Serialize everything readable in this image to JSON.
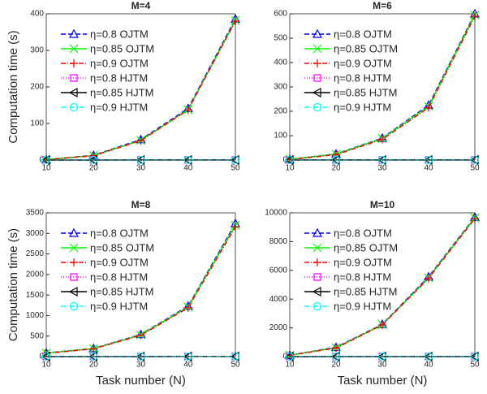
{
  "chart_data": [
    {
      "type": "line",
      "title": "M=4",
      "ylabel": "Computation time (s)",
      "x": [
        10,
        20,
        30,
        40,
        50
      ],
      "xlim": [
        10,
        50
      ],
      "xticks": [
        10,
        20,
        30,
        40,
        50
      ],
      "ylim": [
        0,
        400
      ],
      "yticks": [
        0,
        100,
        200,
        300,
        400
      ],
      "legend": "upper left",
      "series": [
        {
          "name": "η=0.8 OJTM",
          "color": "#0000ff",
          "dash": "6,3",
          "marker": "triangle-up",
          "values": [
            1,
            13,
            56,
            141,
            386
          ]
        },
        {
          "name": "η=0.85 OJTM",
          "color": "#00ff00",
          "dash": "none",
          "marker": "x",
          "values": [
            1,
            12,
            54,
            138,
            382
          ]
        },
        {
          "name": "η=0.9 OJTM",
          "color": "#ff0000",
          "dash": "6,2,1,2",
          "marker": "plus",
          "values": [
            1,
            12,
            53,
            137,
            380
          ]
        },
        {
          "name": "η=0.8 HJTM",
          "color": "#ff00ff",
          "dash": "1,2",
          "marker": "square",
          "values": [
            0.1,
            0.1,
            0.2,
            0.3,
            0.4
          ]
        },
        {
          "name": "η=0.85 HJTM",
          "color": "#000000",
          "dash": "none",
          "marker": "triangle-left",
          "values": [
            0.1,
            0.1,
            0.2,
            0.3,
            0.4
          ]
        },
        {
          "name": "η=0.9 HJTM",
          "color": "#00ffff",
          "dash": "6,2,1,2",
          "marker": "circle",
          "values": [
            0.1,
            0.1,
            0.2,
            0.3,
            0.4
          ]
        }
      ]
    },
    {
      "type": "line",
      "title": "M=6",
      "x": [
        10,
        20,
        30,
        40,
        50
      ],
      "xlim": [
        10,
        50
      ],
      "xticks": [
        10,
        20,
        30,
        40,
        50
      ],
      "ylim": [
        0,
        600
      ],
      "yticks": [
        0,
        100,
        200,
        300,
        400,
        500,
        600
      ],
      "legend": "upper left",
      "series": [
        {
          "name": "η=0.8 OJTM",
          "color": "#0000ff",
          "dash": "6,3",
          "marker": "triangle-up",
          "values": [
            3,
            25,
            90,
            225,
            600
          ]
        },
        {
          "name": "η=0.85 OJTM",
          "color": "#00ff00",
          "dash": "none",
          "marker": "x",
          "values": [
            3,
            24,
            88,
            220,
            595
          ]
        },
        {
          "name": "η=0.9 OJTM",
          "color": "#ff0000",
          "dash": "6,2,1,2",
          "marker": "plus",
          "values": [
            2,
            22,
            85,
            215,
            590
          ]
        },
        {
          "name": "η=0.8 HJTM",
          "color": "#ff00ff",
          "dash": "1,2",
          "marker": "square",
          "values": [
            0.2,
            0.3,
            0.4,
            0.5,
            0.6
          ]
        },
        {
          "name": "η=0.85 HJTM",
          "color": "#000000",
          "dash": "none",
          "marker": "triangle-left",
          "values": [
            0.2,
            0.3,
            0.4,
            0.5,
            0.6
          ]
        },
        {
          "name": "η=0.9 HJTM",
          "color": "#00ffff",
          "dash": "6,2,1,2",
          "marker": "circle",
          "values": [
            0.2,
            0.3,
            0.4,
            0.5,
            0.6
          ]
        }
      ]
    },
    {
      "type": "line",
      "title": "M=8",
      "ylabel": "Computation time (s)",
      "xlabel": "Task number (N)",
      "x": [
        10,
        20,
        30,
        40,
        50
      ],
      "xlim": [
        10,
        50
      ],
      "xticks": [
        10,
        20,
        30,
        40,
        50
      ],
      "ylim": [
        0,
        3500
      ],
      "yticks": [
        0,
        500,
        1000,
        1500,
        2000,
        2500,
        3000,
        3500
      ],
      "legend": "upper left",
      "series": [
        {
          "name": "η=0.8 OJTM",
          "color": "#0000ff",
          "dash": "6,3",
          "marker": "triangle-up",
          "values": [
            90,
            200,
            540,
            1230,
            3240
          ]
        },
        {
          "name": "η=0.85 OJTM",
          "color": "#00ff00",
          "dash": "none",
          "marker": "x",
          "values": [
            85,
            195,
            530,
            1210,
            3200
          ]
        },
        {
          "name": "η=0.9 OJTM",
          "color": "#ff0000",
          "dash": "6,2,1,2",
          "marker": "plus",
          "values": [
            80,
            190,
            520,
            1190,
            3160
          ]
        },
        {
          "name": "η=0.8 HJTM",
          "color": "#ff00ff",
          "dash": "1,2",
          "marker": "square",
          "values": [
            1,
            2,
            3,
            4,
            5
          ]
        },
        {
          "name": "η=0.85 HJTM",
          "color": "#000000",
          "dash": "none",
          "marker": "triangle-left",
          "values": [
            1,
            2,
            3,
            4,
            5
          ]
        },
        {
          "name": "η=0.9 HJTM",
          "color": "#00ffff",
          "dash": "6,2,1,2",
          "marker": "circle",
          "values": [
            1,
            2,
            3,
            4,
            5
          ]
        }
      ]
    },
    {
      "type": "line",
      "title": "M=10",
      "xlabel": "Task number (N)",
      "x": [
        10,
        20,
        30,
        40,
        50
      ],
      "xlim": [
        10,
        50
      ],
      "xticks": [
        10,
        20,
        30,
        40,
        50
      ],
      "ylim": [
        0,
        10000
      ],
      "yticks": [
        0,
        2000,
        4000,
        6000,
        8000,
        10000
      ],
      "legend": "upper left",
      "series": [
        {
          "name": "η=0.8 OJTM",
          "color": "#0000ff",
          "dash": "6,3",
          "marker": "triangle-up",
          "values": [
            100,
            650,
            2250,
            5550,
            9700
          ]
        },
        {
          "name": "η=0.85 OJTM",
          "color": "#00ff00",
          "dash": "none",
          "marker": "x",
          "values": [
            95,
            620,
            2220,
            5480,
            9650
          ]
        },
        {
          "name": "η=0.9 OJTM",
          "color": "#ff0000",
          "dash": "6,2,1,2",
          "marker": "plus",
          "values": [
            90,
            600,
            2200,
            5450,
            9600
          ]
        },
        {
          "name": "η=0.8 HJTM",
          "color": "#ff00ff",
          "dash": "1,2",
          "marker": "square",
          "values": [
            2,
            4,
            6,
            8,
            10
          ]
        },
        {
          "name": "η=0.85 HJTM",
          "color": "#000000",
          "dash": "none",
          "marker": "triangle-left",
          "values": [
            2,
            4,
            6,
            8,
            10
          ]
        },
        {
          "name": "η=0.9 HJTM",
          "color": "#00ffff",
          "dash": "6,2,1,2",
          "marker": "circle",
          "values": [
            2,
            4,
            6,
            8,
            10
          ]
        }
      ]
    }
  ]
}
